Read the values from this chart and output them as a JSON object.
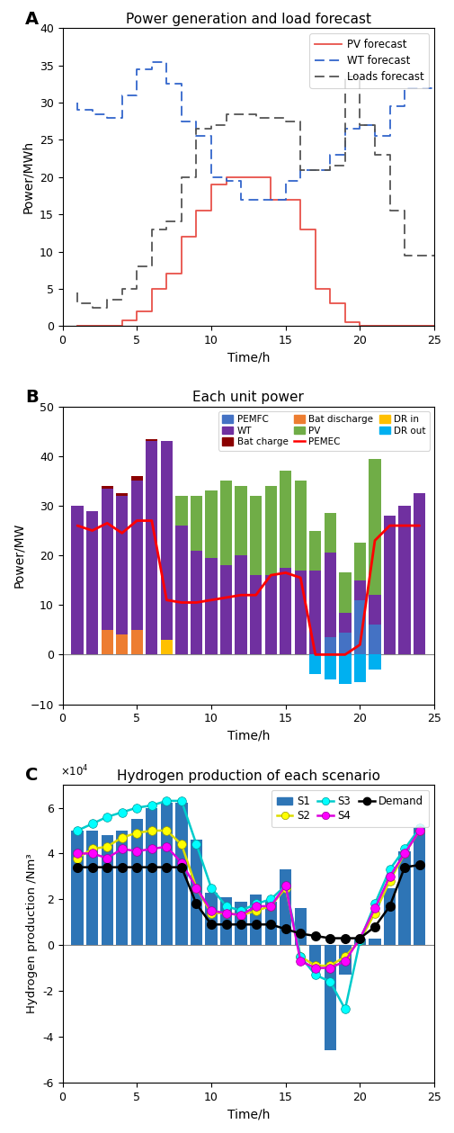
{
  "title_A": "Power generation and load forecast",
  "title_B": "Each unit power",
  "title_C": "Hydrogen production of each scenario",
  "xlabel": "Time/h",
  "ylabel_A": "Power/MWh",
  "ylabel_B": "Power/MW",
  "ylabel_C": "Hydrogen production /Nm³",
  "hours": [
    1,
    2,
    3,
    4,
    5,
    6,
    7,
    8,
    9,
    10,
    11,
    12,
    13,
    14,
    15,
    16,
    17,
    18,
    19,
    20,
    21,
    22,
    23,
    24
  ],
  "pv_forecast": [
    0,
    0,
    0,
    0,
    0.8,
    2,
    5,
    7,
    12,
    15.5,
    19,
    20,
    20,
    20,
    17,
    17,
    13,
    5,
    3,
    0.5,
    0,
    0,
    0,
    0
  ],
  "wt_forecast": [
    30,
    29,
    28.5,
    28,
    31,
    34.5,
    35.5,
    32.5,
    27.5,
    25.5,
    20,
    19.5,
    17,
    17,
    17,
    19.5,
    21,
    21,
    23,
    26.5,
    27,
    25.5,
    29.5,
    32
  ],
  "loads_forecast": [
    4.5,
    3,
    2.5,
    3.5,
    5,
    8,
    13,
    14,
    20,
    26.5,
    27,
    28.5,
    28.5,
    28,
    28,
    27.5,
    21,
    21,
    21.5,
    33.5,
    27,
    23,
    15.5,
    9.5
  ],
  "bar_hours": [
    1,
    2,
    3,
    4,
    5,
    6,
    7,
    8,
    9,
    10,
    11,
    12,
    13,
    14,
    15,
    16,
    17,
    18,
    19,
    20,
    21,
    22,
    23,
    24
  ],
  "pemfc": [
    0,
    0,
    0,
    0,
    0,
    0,
    0,
    0,
    0,
    0,
    0,
    0,
    0,
    0,
    0,
    0,
    0,
    3.5,
    4.5,
    11,
    6,
    0,
    0,
    0
  ],
  "bat_discharge": [
    0,
    0,
    5,
    4,
    5,
    0,
    0,
    0,
    0,
    0,
    0,
    0,
    0,
    0,
    0,
    0,
    0,
    0,
    0,
    0,
    0,
    0,
    0,
    0
  ],
  "dr_in": [
    0,
    0,
    0,
    0,
    0,
    0,
    3,
    0,
    0,
    0,
    0,
    0,
    0,
    0,
    0,
    0,
    0,
    0,
    0,
    0,
    0,
    0,
    0,
    0
  ],
  "wt_bar": [
    30,
    29,
    28.5,
    28,
    30,
    43,
    40,
    26,
    21,
    19.5,
    18,
    20,
    16,
    16,
    17.5,
    17,
    17,
    17,
    4,
    4,
    6,
    28,
    30,
    32.5
  ],
  "pv_bar": [
    0,
    0,
    0,
    0,
    0,
    0,
    0,
    6,
    11,
    13.5,
    17,
    14,
    16,
    18,
    19.5,
    18,
    8,
    8,
    8,
    7.5,
    27.5,
    0,
    0,
    0
  ],
  "bat_charge": [
    0,
    0,
    0.5,
    0.5,
    1,
    0.5,
    0,
    0,
    0,
    0,
    0,
    0,
    0,
    0,
    0,
    0,
    0,
    0,
    0,
    0,
    0,
    0,
    0,
    0
  ],
  "dr_out": [
    0,
    0,
    0,
    0,
    0,
    0,
    0,
    0,
    0,
    0,
    0,
    0,
    0,
    0,
    0,
    0,
    -4,
    -5,
    -6,
    -5.5,
    -3,
    0,
    0,
    0
  ],
  "pemec_line": [
    26,
    25,
    26.5,
    24.5,
    27,
    27,
    11,
    10.5,
    10.5,
    11,
    11.5,
    12,
    12,
    16,
    16.5,
    15.5,
    0,
    0,
    0,
    2,
    23,
    26,
    26,
    26
  ],
  "s1_bar": [
    50000,
    50000,
    48000,
    50000,
    55000,
    60000,
    62000,
    62000,
    46000,
    23000,
    21000,
    19000,
    22000,
    19000,
    33000,
    16000,
    -8000,
    -46000,
    -13000,
    3000,
    3000,
    25000,
    41000,
    51000
  ],
  "s2_line": [
    38000,
    42000,
    43000,
    47000,
    49000,
    50000,
    50000,
    44000,
    25000,
    14000,
    14000,
    13000,
    15000,
    17000,
    25000,
    -5000,
    -9000,
    -9000,
    -5000,
    2000,
    14000,
    28000,
    40000,
    50000
  ],
  "s3_line": [
    50000,
    53000,
    56000,
    58000,
    60000,
    61000,
    63000,
    63000,
    44000,
    25000,
    17000,
    15000,
    18000,
    20000,
    26000,
    -5000,
    -13000,
    -16000,
    -28000,
    2000,
    18000,
    33000,
    42000,
    51000
  ],
  "s4_line": [
    40000,
    40000,
    38000,
    42000,
    41000,
    42000,
    43000,
    36000,
    25000,
    15000,
    14000,
    13000,
    17000,
    17000,
    26000,
    -7000,
    -10000,
    -10000,
    -7000,
    3000,
    16000,
    30000,
    40000,
    50000
  ],
  "demand_line": [
    34000,
    34000,
    34000,
    34000,
    34000,
    34000,
    34000,
    34000,
    18000,
    9000,
    9000,
    9000,
    9000,
    9000,
    7000,
    5000,
    4000,
    3000,
    3000,
    3000,
    8000,
    17000,
    34000,
    35000
  ]
}
